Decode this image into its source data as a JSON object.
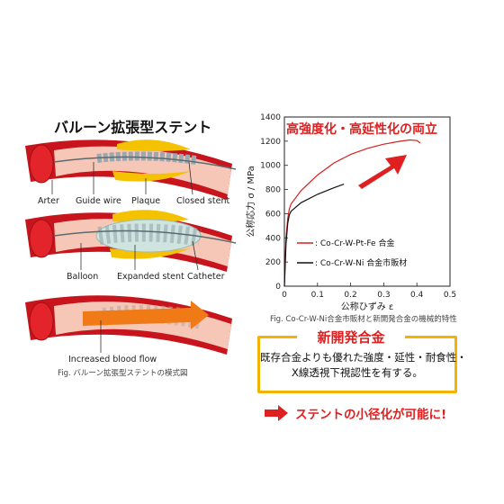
{
  "left": {
    "heading": "バルーン拡張型ステント",
    "panel1": {
      "labels": {
        "arter": "Arter",
        "guide_wire": "Guide wire",
        "plaque": "Plaque",
        "closed_stent": "Closed stent"
      }
    },
    "panel2": {
      "labels": {
        "balloon": "Balloon",
        "expanded_stent": "Expanded stent",
        "catheter": "Catheter"
      }
    },
    "panel3": {
      "labels": {
        "increased_blood_flow": "Increased blood flow"
      }
    },
    "caption": "Fig. バルーン拡張型ステントの模式図",
    "colors": {
      "vessel": "#c8141c",
      "lumen": "#f6c7b6",
      "plaque": "#f5c200",
      "balloon": "#cfe3df",
      "flow_arrow": "#f07a16"
    }
  },
  "chart_data": {
    "type": "line",
    "annotation": "高強度化・高延性化の両立",
    "xlabel": "公称ひずみ ε",
    "ylabel": "公称応力 σ / MPa",
    "xlim": [
      0,
      0.5
    ],
    "ylim": [
      0,
      1400
    ],
    "x_ticks": [
      "0",
      "0.1",
      "0.2",
      "0.3",
      "0.4",
      "0.5"
    ],
    "y_ticks": [
      "0",
      "200",
      "400",
      "600",
      "800",
      "1000",
      "1200",
      "1400"
    ],
    "legend_position": "bottom-right",
    "series": [
      {
        "name": ": Co-Cr-W-Pt-Fe 合金",
        "color": "#d62020",
        "x": [
          0,
          0.005,
          0.01,
          0.015,
          0.02,
          0.05,
          0.1,
          0.15,
          0.2,
          0.25,
          0.3,
          0.35,
          0.38,
          0.4,
          0.41
        ],
        "y": [
          0,
          400,
          560,
          640,
          680,
          790,
          920,
          1020,
          1090,
          1140,
          1175,
          1200,
          1210,
          1205,
          1185
        ]
      },
      {
        "name": ": Co-Cr-W-Ni 合金市販材",
        "color": "#111111",
        "x": [
          0,
          0.005,
          0.01,
          0.015,
          0.02,
          0.05,
          0.1,
          0.15,
          0.18
        ],
        "y": [
          0,
          350,
          520,
          590,
          620,
          690,
          760,
          815,
          845
        ]
      }
    ],
    "caption": "Fig. Co-Cr-W-Ni合金市販材と新開発合金の機械的特性",
    "arrow_color": "#e02020"
  },
  "alloy": {
    "title": "新開発合金",
    "line1": "既存合金よりも優れた強度・延性・耐食性・",
    "line2": "X線透視下視認性を有する。",
    "border_color": "#f2b400"
  },
  "result": {
    "text": "ステントの小径化が可能に!",
    "color": "#e02020"
  }
}
